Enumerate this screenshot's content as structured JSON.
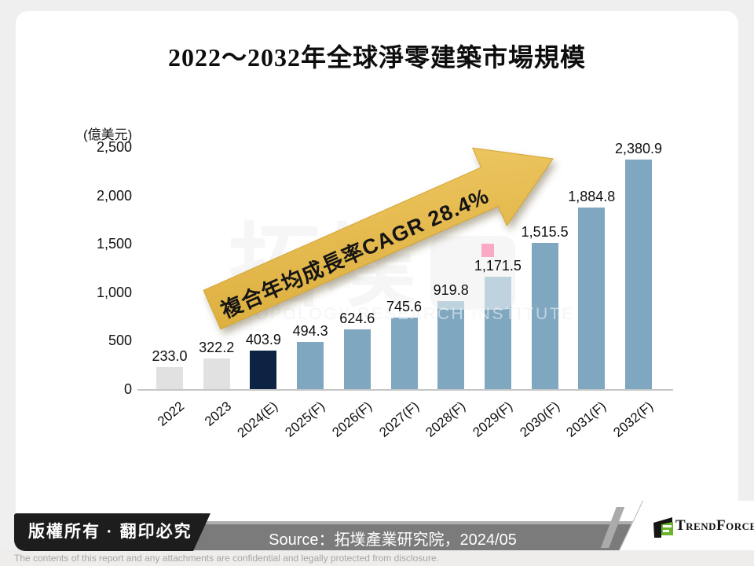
{
  "slide": {
    "watermark": {
      "cjk": "拓墣",
      "latin": "TOPOLOGY RESEARCH INSTITUTE"
    }
  },
  "chart_data": {
    "type": "bar",
    "title": "2022～2032年全球淨零建築市場規模",
    "unit_label": "(億美元)",
    "categories": [
      "2022",
      "2023",
      "2024(E)",
      "2025(F)",
      "2026(F)",
      "2027(F)",
      "2028(F)",
      "2029(F)",
      "2030(F)",
      "2031(F)",
      "2032(F)"
    ],
    "values": [
      233.0,
      322.2,
      403.9,
      494.3,
      624.6,
      745.6,
      919.8,
      1171.5,
      1515.5,
      1884.8,
      2380.9
    ],
    "value_labels": [
      "233.0",
      "322.2",
      "403.9",
      "494.3",
      "624.6",
      "745.6",
      "919.8",
      "1,171.5",
      "1,515.5",
      "1,884.8",
      "2,380.9"
    ],
    "y_ticks": [
      "2,500",
      "2,000",
      "1,500",
      "1,000",
      "500",
      "0"
    ],
    "y_tick_values": [
      2500,
      2000,
      1500,
      1000,
      500,
      0
    ],
    "ylim": [
      0,
      2500
    ],
    "grid": "off",
    "legend": "none",
    "bar_roles": [
      "historical",
      "historical",
      "estimate",
      "forecast",
      "forecast",
      "forecast",
      "forecast",
      "forecast",
      "forecast",
      "forecast",
      "forecast"
    ],
    "colors": {
      "historical": "#e1e1e1",
      "estimate": "#0d2344",
      "forecast": "#7fa7bf"
    },
    "annotation": {
      "text": "複合年均成長率CAGR 28.4%",
      "arrow_color": "#e6bb4f"
    }
  },
  "footer": {
    "copyright": "版權所有 · 翻印必究",
    "source": "Source：拓墣產業研究院，2024/05",
    "disclaimer": "The contents of this report and any attachments are confidential and legally protected from disclosure.",
    "brand": "TrendForce"
  }
}
